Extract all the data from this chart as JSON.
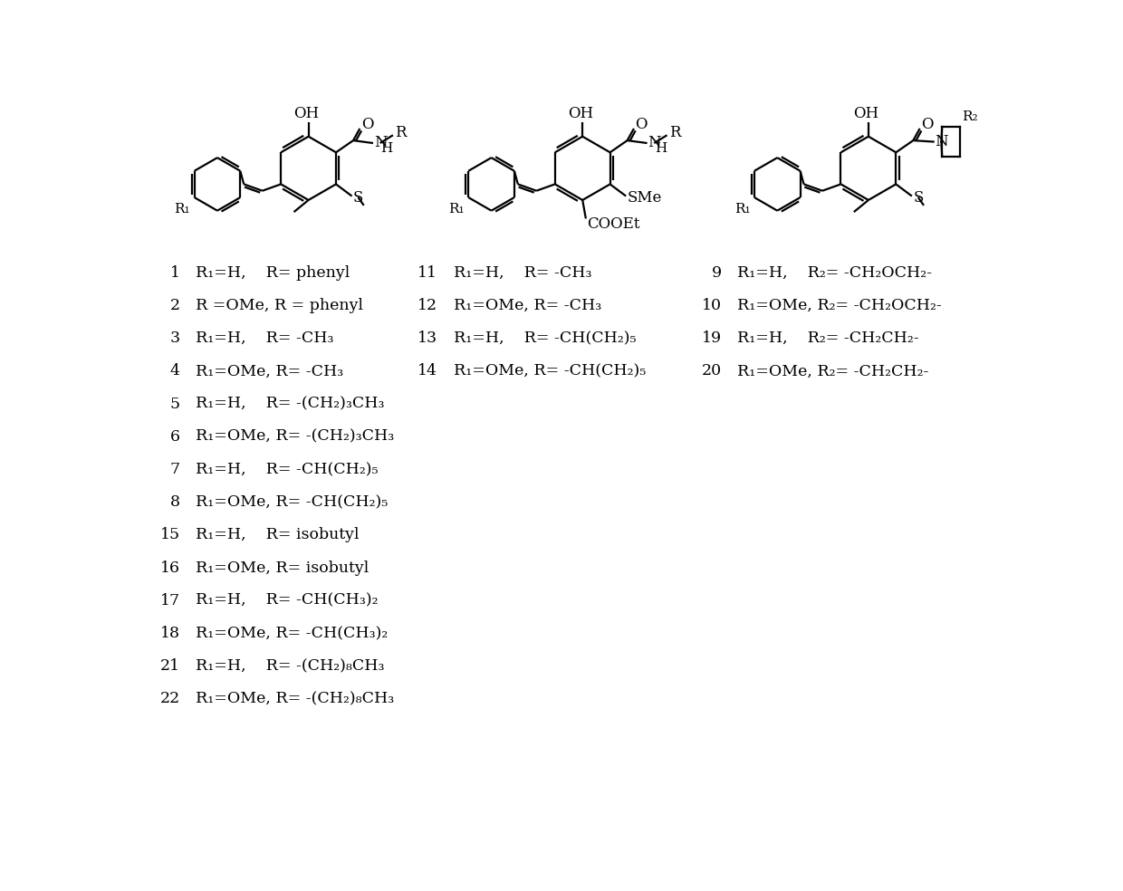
{
  "bg_color": "#ffffff",
  "lw": 1.6,
  "col1_entries": [
    [
      "1",
      "R₁=H,    R= phenyl"
    ],
    [
      "2",
      "R =OMe, R = phenyl"
    ],
    [
      "3",
      "R₁=H,    R= -CH₃"
    ],
    [
      "4",
      "R₁=OMe, R= -CH₃"
    ],
    [
      "5",
      "R₁=H,    R= -(CH₂)₃CH₃"
    ],
    [
      "6",
      "R₁=OMe, R= -(CH₂)₃CH₃"
    ],
    [
      "7",
      "R₁=H,    R= -CH(CH₂)₅"
    ],
    [
      "8",
      "R₁=OMe, R= -CH(CH₂)₅"
    ],
    [
      "15",
      "R₁=H,    R= isobutyl"
    ],
    [
      "16",
      "R₁=OMe, R= isobutyl"
    ],
    [
      "17",
      "R₁=H,    R= -CH(CH₃)₂"
    ],
    [
      "18",
      "R₁=OMe, R= -CH(CH₃)₂"
    ],
    [
      "21",
      "R₁=H,    R= -(CH₂)₈CH₃"
    ],
    [
      "22",
      "R₁=OMe, R= -(CH₂)₈CH₃"
    ]
  ],
  "col2_entries": [
    [
      "11",
      "R₁=H,    R= -CH₃"
    ],
    [
      "12",
      "R₁=OMe, R= -CH₃"
    ],
    [
      "13",
      "R₁=H,    R= -CH(CH₂)₅"
    ],
    [
      "14",
      "R₁=OMe, R= -CH(CH₂)₅"
    ]
  ],
  "col3_entries": [
    [
      "9",
      "R₁=H,    R₂= -CH₂OCH₂-"
    ],
    [
      "10",
      "R₁=OMe, R₂= -CH₂OCH₂-"
    ],
    [
      "19",
      "R₁=H,    R₂= -CH₂CH₂-"
    ],
    [
      "20",
      "R₁=OMe, R₂= -CH₂CH₂-"
    ]
  ]
}
